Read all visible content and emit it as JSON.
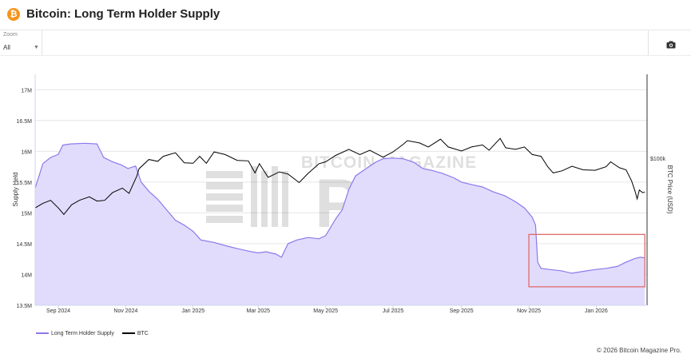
{
  "header": {
    "title": "Bitcoin: Long Term Holder Supply",
    "logo_glyph": "₿",
    "logo_icon": "bitcoin-logo-icon"
  },
  "toolbar": {
    "zoom_label": "Zoom",
    "zoom_value": "All",
    "camera_icon": "camera-icon"
  },
  "watermark": {
    "line1": "BITCOIN MAGAZINE",
    "line2": "PRO"
  },
  "footer": {
    "copyright": "© 2026 Bitcoin Magazine Pro."
  },
  "colors": {
    "supply_line": "#8f78ea",
    "supply_fill": "#e1dcfc",
    "btc_line": "#000000",
    "highlight_box": "#e06a6a"
  },
  "chart_data": {
    "type": "area",
    "title": "Bitcoin: Long Term Holder Supply",
    "x_range": [
      "2024-08-11",
      "2026-02-16"
    ],
    "x_ticks": [
      {
        "date": "2024-09-01",
        "label": "Sep 2024"
      },
      {
        "date": "2024-11-01",
        "label": "Nov 2024"
      },
      {
        "date": "2025-01-01",
        "label": "Jan 2025"
      },
      {
        "date": "2025-03-01",
        "label": "Mar 2025"
      },
      {
        "date": "2025-05-01",
        "label": "May 2025"
      },
      {
        "date": "2025-07-01",
        "label": "Jul 2025"
      },
      {
        "date": "2025-09-01",
        "label": "Sep 2025"
      },
      {
        "date": "2025-11-01",
        "label": "Nov 2025"
      },
      {
        "date": "2026-01-01",
        "label": "Jan 2026"
      }
    ],
    "y_left": {
      "label": "Supply Held",
      "range": [
        13500000,
        17250000
      ],
      "ticks": [
        {
          "value": 13500000,
          "label": "13.5M"
        },
        {
          "value": 14000000,
          "label": "14M"
        },
        {
          "value": 14500000,
          "label": "14.5M"
        },
        {
          "value": 15000000,
          "label": "15M"
        },
        {
          "value": 15500000,
          "label": "15.5M"
        },
        {
          "value": 16000000,
          "label": "16M"
        },
        {
          "value": 16500000,
          "label": "16.5M"
        },
        {
          "value": 17000000,
          "label": "17M"
        }
      ]
    },
    "y_right": {
      "label": "BTC Price (USD)",
      "scale": "log",
      "range": [
        20000,
        250000
      ],
      "ticks": [
        {
          "value": 100000,
          "label": "$100k"
        }
      ]
    },
    "grid": true,
    "legend_position": "bottom-left",
    "highlight": {
      "x": [
        "2025-11-01",
        "2026-02-14"
      ],
      "y": [
        13800000,
        14650000
      ]
    },
    "series": [
      {
        "name": "Long Term Holder Supply",
        "type": "area",
        "axis": "left",
        "points": [
          [
            "2024-08-11",
            15400000
          ],
          [
            "2024-08-18",
            15800000
          ],
          [
            "2024-08-25",
            15900000
          ],
          [
            "2024-09-01",
            15950000
          ],
          [
            "2024-09-05",
            16100000
          ],
          [
            "2024-09-12",
            16120000
          ],
          [
            "2024-09-25",
            16130000
          ],
          [
            "2024-10-06",
            16120000
          ],
          [
            "2024-10-12",
            15900000
          ],
          [
            "2024-10-20",
            15830000
          ],
          [
            "2024-10-28",
            15780000
          ],
          [
            "2024-11-03",
            15720000
          ],
          [
            "2024-11-10",
            15760000
          ],
          [
            "2024-11-15",
            15500000
          ],
          [
            "2024-11-22",
            15350000
          ],
          [
            "2024-11-30",
            15220000
          ],
          [
            "2024-12-08",
            15050000
          ],
          [
            "2024-12-16",
            14880000
          ],
          [
            "2024-12-24",
            14800000
          ],
          [
            "2025-01-01",
            14700000
          ],
          [
            "2025-01-08",
            14560000
          ],
          [
            "2025-01-20",
            14520000
          ],
          [
            "2025-02-01",
            14460000
          ],
          [
            "2025-02-10",
            14420000
          ],
          [
            "2025-02-20",
            14380000
          ],
          [
            "2025-03-01",
            14350000
          ],
          [
            "2025-03-08",
            14370000
          ],
          [
            "2025-03-17",
            14330000
          ],
          [
            "2025-03-22",
            14280000
          ],
          [
            "2025-03-28",
            14500000
          ],
          [
            "2025-04-05",
            14560000
          ],
          [
            "2025-04-15",
            14600000
          ],
          [
            "2025-04-25",
            14580000
          ],
          [
            "2025-05-01",
            14630000
          ],
          [
            "2025-05-10",
            14900000
          ],
          [
            "2025-05-16",
            15050000
          ],
          [
            "2025-05-22",
            15380000
          ],
          [
            "2025-05-28",
            15600000
          ],
          [
            "2025-06-05",
            15700000
          ],
          [
            "2025-06-15",
            15820000
          ],
          [
            "2025-06-22",
            15880000
          ],
          [
            "2025-07-01",
            15890000
          ],
          [
            "2025-07-10",
            15880000
          ],
          [
            "2025-07-20",
            15820000
          ],
          [
            "2025-07-28",
            15720000
          ],
          [
            "2025-08-05",
            15690000
          ],
          [
            "2025-08-15",
            15640000
          ],
          [
            "2025-08-25",
            15570000
          ],
          [
            "2025-09-01",
            15500000
          ],
          [
            "2025-09-10",
            15460000
          ],
          [
            "2025-09-20",
            15420000
          ],
          [
            "2025-09-30",
            15340000
          ],
          [
            "2025-10-10",
            15280000
          ],
          [
            "2025-10-20",
            15180000
          ],
          [
            "2025-10-28",
            15080000
          ],
          [
            "2025-11-04",
            14930000
          ],
          [
            "2025-11-07",
            14800000
          ],
          [
            "2025-11-09",
            14200000
          ],
          [
            "2025-11-12",
            14100000
          ],
          [
            "2025-11-20",
            14080000
          ],
          [
            "2025-11-30",
            14060000
          ],
          [
            "2025-12-10",
            14020000
          ],
          [
            "2025-12-20",
            14050000
          ],
          [
            "2025-12-31",
            14080000
          ],
          [
            "2026-01-10",
            14100000
          ],
          [
            "2026-01-20",
            14130000
          ],
          [
            "2026-01-28",
            14200000
          ],
          [
            "2026-02-05",
            14260000
          ],
          [
            "2026-02-10",
            14280000
          ],
          [
            "2026-02-14",
            14270000
          ]
        ]
      },
      {
        "name": "BTC",
        "type": "line",
        "axis": "right",
        "points": [
          [
            "2024-08-11",
            58000
          ],
          [
            "2024-08-18",
            61000
          ],
          [
            "2024-08-25",
            63000
          ],
          [
            "2024-09-01",
            58000
          ],
          [
            "2024-09-06",
            54000
          ],
          [
            "2024-09-13",
            60000
          ],
          [
            "2024-09-20",
            63000
          ],
          [
            "2024-09-29",
            65500
          ],
          [
            "2024-10-06",
            62500
          ],
          [
            "2024-10-13",
            63000
          ],
          [
            "2024-10-20",
            68500
          ],
          [
            "2024-10-29",
            72000
          ],
          [
            "2024-11-04",
            68000
          ],
          [
            "2024-11-11",
            82000
          ],
          [
            "2024-11-13",
            89000
          ],
          [
            "2024-11-22",
            98500
          ],
          [
            "2024-11-30",
            96500
          ],
          [
            "2024-12-05",
            102000
          ],
          [
            "2024-12-16",
            106000
          ],
          [
            "2024-12-24",
            95000
          ],
          [
            "2025-01-01",
            94500
          ],
          [
            "2025-01-07",
            102000
          ],
          [
            "2025-01-13",
            94500
          ],
          [
            "2025-01-20",
            107000
          ],
          [
            "2025-01-30",
            104000
          ],
          [
            "2025-02-10",
            97500
          ],
          [
            "2025-02-20",
            97000
          ],
          [
            "2025-02-26",
            85000
          ],
          [
            "2025-03-02",
            94000
          ],
          [
            "2025-03-10",
            81000
          ],
          [
            "2025-03-20",
            86000
          ],
          [
            "2025-03-28",
            84000
          ],
          [
            "2025-04-07",
            76500
          ],
          [
            "2025-04-15",
            84500
          ],
          [
            "2025-04-25",
            94000
          ],
          [
            "2025-05-01",
            96000
          ],
          [
            "2025-05-10",
            103000
          ],
          [
            "2025-05-22",
            110000
          ],
          [
            "2025-06-01",
            104000
          ],
          [
            "2025-06-10",
            109000
          ],
          [
            "2025-06-22",
            101000
          ],
          [
            "2025-07-01",
            107000
          ],
          [
            "2025-07-10",
            116000
          ],
          [
            "2025-07-14",
            121000
          ],
          [
            "2025-07-25",
            118000
          ],
          [
            "2025-08-02",
            113000
          ],
          [
            "2025-08-13",
            123000
          ],
          [
            "2025-08-20",
            113000
          ],
          [
            "2025-09-01",
            108000
          ],
          [
            "2025-09-10",
            113000
          ],
          [
            "2025-09-20",
            115500
          ],
          [
            "2025-09-26",
            109000
          ],
          [
            "2025-10-06",
            124000
          ],
          [
            "2025-10-11",
            112000
          ],
          [
            "2025-10-20",
            110000
          ],
          [
            "2025-10-28",
            113000
          ],
          [
            "2025-11-04",
            104000
          ],
          [
            "2025-11-12",
            102000
          ],
          [
            "2025-11-18",
            91000
          ],
          [
            "2025-11-23",
            85000
          ],
          [
            "2025-12-01",
            87000
          ],
          [
            "2025-12-10",
            91500
          ],
          [
            "2025-12-20",
            88000
          ],
          [
            "2025-12-31",
            87500
          ],
          [
            "2026-01-10",
            91000
          ],
          [
            "2026-01-14",
            96000
          ],
          [
            "2026-01-22",
            90000
          ],
          [
            "2026-01-28",
            88000
          ],
          [
            "2026-02-02",
            78000
          ],
          [
            "2026-02-05",
            70000
          ],
          [
            "2026-02-07",
            64000
          ],
          [
            "2026-02-09",
            70500
          ],
          [
            "2026-02-12",
            68500
          ],
          [
            "2026-02-14",
            69000
          ]
        ]
      }
    ]
  }
}
